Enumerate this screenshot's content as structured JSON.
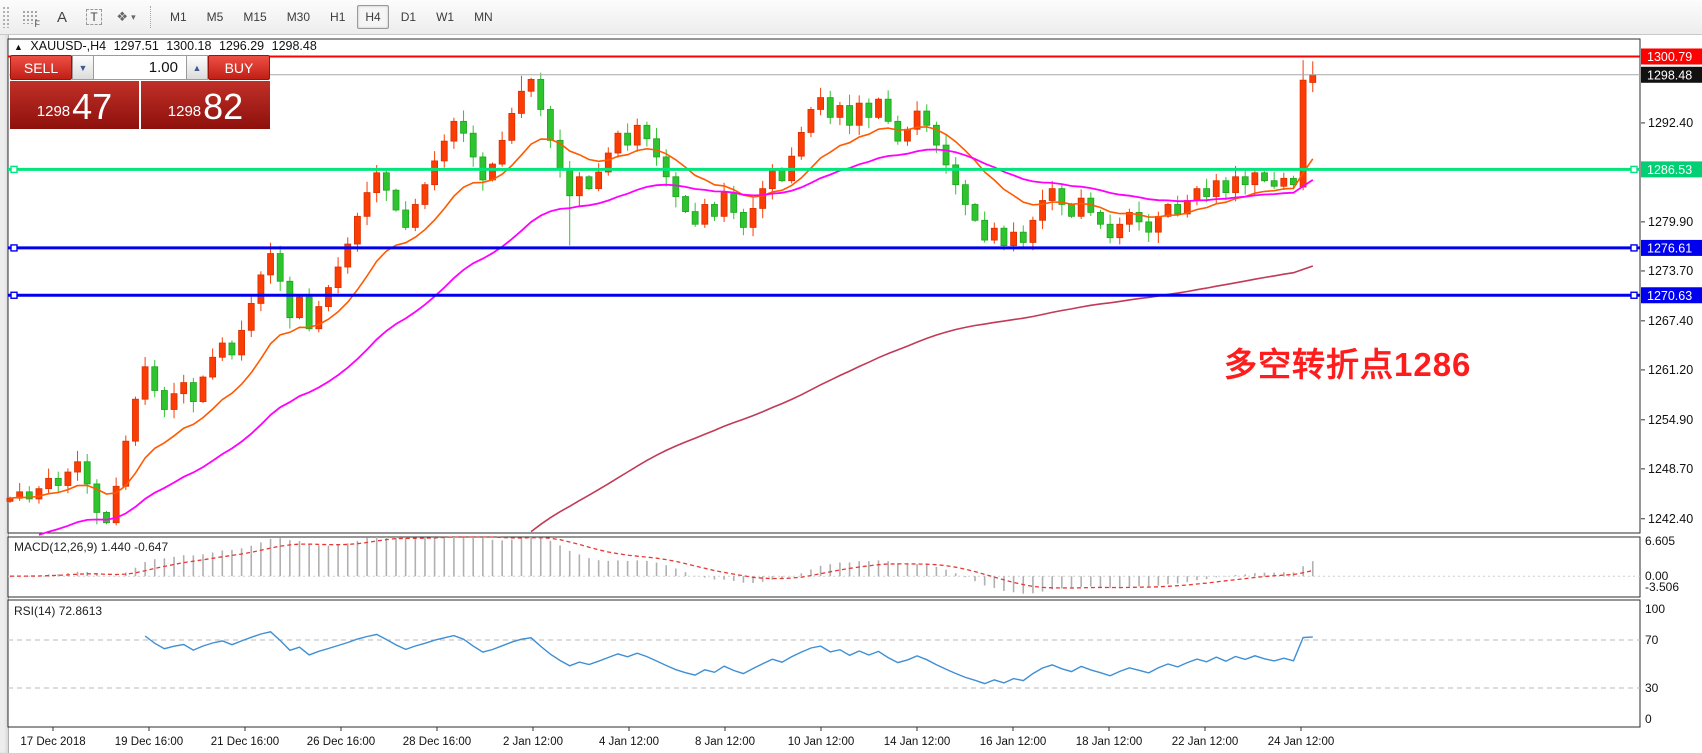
{
  "toolbar": {
    "icons": [
      {
        "name": "indicator-grid-icon",
        "glyph": "F"
      },
      {
        "name": "text-label-icon",
        "glyph": "A"
      },
      {
        "name": "text-box-icon",
        "glyph": "T"
      },
      {
        "name": "objects-icon",
        "glyph": "❖",
        "caret": "▾"
      }
    ],
    "timeframes": [
      {
        "label": "M1",
        "active": false
      },
      {
        "label": "M5",
        "active": false
      },
      {
        "label": "M15",
        "active": false
      },
      {
        "label": "M30",
        "active": false
      },
      {
        "label": "H1",
        "active": false
      },
      {
        "label": "H4",
        "active": true
      },
      {
        "label": "D1",
        "active": false
      },
      {
        "label": "W1",
        "active": false
      },
      {
        "label": "MN",
        "active": false
      }
    ]
  },
  "chart_title": {
    "direction": "▲",
    "symbol": "XAUUSD-,H4",
    "open": "1297.51",
    "high": "1300.18",
    "low": "1296.29",
    "close": "1298.48"
  },
  "trade_panel": {
    "sell_label": "SELL",
    "buy_label": "BUY",
    "volume": "1.00",
    "sell_price_major": "1298",
    "sell_price_minor": "47",
    "buy_price_major": "1298",
    "buy_price_minor": "82"
  },
  "chart_data": {
    "type": "candlestick",
    "symbol": "XAUUSD-",
    "timeframe": "H4",
    "current_ohlc": {
      "open": 1297.51,
      "high": 1300.18,
      "low": 1296.29,
      "close": 1298.48
    },
    "price_axis": {
      "visible_range": [
        1240.6,
        1303.0
      ],
      "ticks": [
        1292.4,
        1279.9,
        1273.7,
        1267.4,
        1261.2,
        1254.9,
        1248.7,
        1242.4
      ],
      "badges": [
        {
          "value": "1300.79",
          "color": "#ff0000"
        },
        {
          "value": "1298.48",
          "color": "#111111"
        },
        {
          "value": "1286.53",
          "color": "#00cf74"
        },
        {
          "value": "1276.61",
          "color": "#0000ee"
        },
        {
          "value": "1270.63",
          "color": "#0000ee"
        }
      ]
    },
    "hlines": [
      {
        "value": 1300.79,
        "color": "#ff0000",
        "width": 2,
        "handles": false
      },
      {
        "value": 1298.48,
        "color": "#a9a9a9",
        "width": 1,
        "handles": false
      },
      {
        "value": 1286.53,
        "color": "#00e67c",
        "width": 3,
        "handles": true
      },
      {
        "value": 1276.61,
        "color": "#0000ee",
        "width": 3,
        "handles": true
      },
      {
        "value": 1270.63,
        "color": "#0000ee",
        "width": 3,
        "handles": true
      }
    ],
    "time_axis": [
      "17 Dec 2018",
      "19 Dec 16:00",
      "21 Dec 16:00",
      "26 Dec 16:00",
      "28 Dec 16:00",
      "2 Jan 12:00",
      "4 Jan 12:00",
      "8 Jan 12:00",
      "10 Jan 12:00",
      "14 Jan 12:00",
      "16 Jan 12:00",
      "18 Jan 12:00",
      "22 Jan 12:00",
      "24 Jan 12:00"
    ],
    "candles": {
      "bull_color": "#fb3c05",
      "bull_border": "#d83100",
      "bear_color": "#2fc42f",
      "bear_border": "#1ca51c",
      "first_open": 1244.6,
      "closes": [
        1245.0,
        1245.8,
        1244.9,
        1246.2,
        1247.5,
        1246.6,
        1248.3,
        1249.6,
        1246.8,
        1243.2,
        1241.9,
        1246.5,
        1252.2,
        1257.5,
        1261.6,
        1258.6,
        1256.2,
        1258.2,
        1259.6,
        1257.2,
        1260.3,
        1262.8,
        1264.6,
        1263.1,
        1266.2,
        1269.6,
        1273.2,
        1275.9,
        1272.4,
        1267.8,
        1270.4,
        1266.4,
        1269.2,
        1271.6,
        1274.2,
        1277.1,
        1280.6,
        1283.6,
        1286.1,
        1283.9,
        1281.4,
        1279.2,
        1282.1,
        1284.6,
        1287.6,
        1290.1,
        1292.6,
        1291.1,
        1288.1,
        1285.2,
        1287.2,
        1290.2,
        1293.6,
        1296.4,
        1297.9,
        1294.1,
        1290.2,
        1286.6,
        1283.2,
        1285.6,
        1284.1,
        1286.2,
        1288.6,
        1291.1,
        1289.6,
        1292.1,
        1290.4,
        1288.1,
        1285.6,
        1283.1,
        1281.2,
        1279.6,
        1282.1,
        1280.6,
        1283.6,
        1281.1,
        1279.2,
        1281.6,
        1284.1,
        1286.6,
        1285.1,
        1288.2,
        1291.2,
        1294.1,
        1295.6,
        1293.1,
        1294.6,
        1292.1,
        1294.9,
        1293.1,
        1295.4,
        1292.6,
        1290.1,
        1291.6,
        1293.9,
        1292.1,
        1289.6,
        1287.1,
        1284.6,
        1282.1,
        1280.1,
        1277.6,
        1279.1,
        1276.9,
        1278.6,
        1277.3,
        1280.1,
        1282.6,
        1284.1,
        1282.1,
        1280.6,
        1282.9,
        1281.1,
        1279.6,
        1277.9,
        1279.6,
        1281.1,
        1279.9,
        1278.6,
        1280.6,
        1282.1,
        1280.9,
        1282.6,
        1284.1,
        1283.1,
        1285.1,
        1283.6,
        1285.6,
        1284.6,
        1286.1,
        1285.1,
        1284.4,
        1285.4,
        1284.6,
        1297.8,
        1298.48
      ],
      "overrides": {
        "9": {
          "l": 1241.7
        },
        "53": {
          "h": 1298.35
        },
        "54": {
          "h": 1298.1
        },
        "58": {
          "l": 1276.9
        },
        "134": {
          "o": 1284.3,
          "h": 1300.33,
          "l": 1283.9,
          "c": 1297.8
        },
        "135": {
          "o": 1297.51,
          "h": 1300.18,
          "l": 1296.29,
          "c": 1298.48
        }
      }
    },
    "moving_averages": [
      {
        "name": "fast-ma",
        "period": 13,
        "color": "#ff5a00",
        "seed": null,
        "width": 1.6
      },
      {
        "name": "medium-ma",
        "period": 34,
        "color": "#ff00ff",
        "seed": 1239,
        "width": 1.8
      },
      {
        "name": "slow-ma",
        "period": 115,
        "color": "#c13a57",
        "seed": 1189,
        "width": 1.6
      }
    ],
    "macd": {
      "label": "MACD(12,26,9)",
      "main_value": "1.440",
      "signal_value": "-0.647",
      "fast": 12,
      "slow": 26,
      "signal": 9,
      "scale_max": 6.605,
      "scale_min": -3.506,
      "axis_labels": [
        "6.605",
        "0.00",
        "-3.506"
      ],
      "hist_color": "#b0b0b0",
      "signal_color": "#e53935"
    },
    "rsi": {
      "label": "RSI(14)",
      "value": "72.8613",
      "period": 14,
      "levels": [
        70,
        30
      ],
      "axis_labels": [
        "100",
        "70",
        "30",
        "0"
      ],
      "color": "#3f8fd4",
      "range": [
        0,
        100
      ]
    },
    "annotation": {
      "text": "多空转折点1286",
      "color": "#ff1c1c"
    }
  }
}
